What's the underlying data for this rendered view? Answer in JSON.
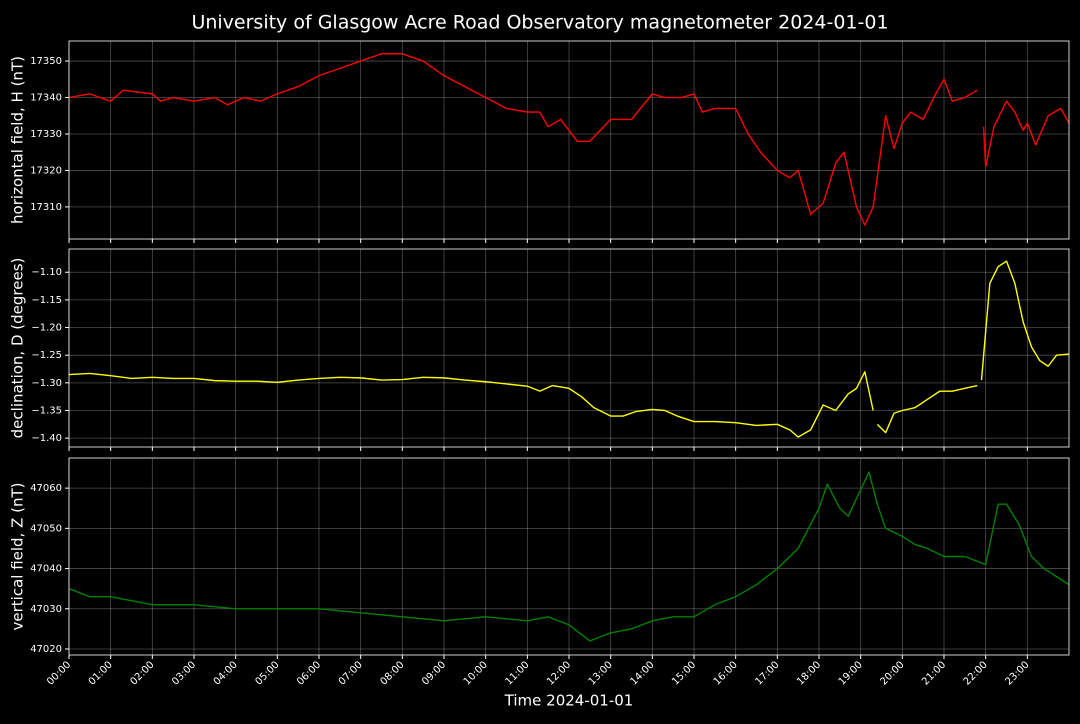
{
  "title": "University of Glasgow Acre Road Observatory magnetometer 2024-01-01",
  "chart_data": [
    {
      "type": "line",
      "ylabel": "horizontal field, H (nT)",
      "grid": true,
      "xlim": [
        0,
        24
      ],
      "ylim": [
        17301.2,
        17355.5
      ],
      "yticks": [
        17310,
        17320,
        17330,
        17340,
        17350
      ],
      "x": [
        0,
        0.5,
        1,
        1.3,
        2,
        2.2,
        2.5,
        3,
        3.5,
        3.8,
        4.2,
        4.6,
        5,
        5.5,
        6,
        6.5,
        7,
        7.5,
        8,
        8.5,
        9,
        9.5,
        10,
        10.5,
        11,
        11.3,
        11.5,
        11.8,
        12.2,
        12.5,
        13,
        13.5,
        14,
        14.3,
        14.7,
        15,
        15.2,
        15.5,
        16,
        16.3,
        16.6,
        17,
        17.3,
        17.5,
        17.8,
        18.1,
        18.4,
        18.6,
        18.9,
        19.1,
        19.3,
        19.6,
        19.8,
        20,
        20.2,
        20.5,
        20.8,
        21,
        21.2,
        21.5,
        21.8,
        21.9,
        21.95,
        22,
        22.2,
        22.5,
        22.7,
        22.9,
        23,
        23.2,
        23.5,
        23.8,
        24
      ],
      "series": [
        {
          "color": "#ff0000",
          "values": [
            17340,
            17341,
            17339,
            17342,
            17341,
            17339,
            17340,
            17339,
            17340,
            17338,
            17340,
            17339,
            17341,
            17343,
            17346,
            17348,
            17350,
            17352,
            17352,
            17350,
            17346,
            17343,
            17340,
            17337,
            17336,
            17336,
            17332,
            17334,
            17328,
            17328,
            17334,
            17334,
            17341,
            17340,
            17340,
            17341,
            17336,
            17337,
            17337,
            17330,
            17325,
            17320,
            17318,
            17320,
            17308,
            17311,
            17322,
            17325,
            17310,
            17305,
            17310,
            17335,
            17326,
            17333,
            17336,
            17334,
            17341,
            17345,
            17339,
            17340,
            17342,
            null,
            17332,
            17321,
            17332,
            17339,
            17336,
            17331,
            17333,
            17327,
            17335,
            17337,
            17333
          ]
        }
      ]
    },
    {
      "type": "line",
      "ylabel": "declination, D (degrees)",
      "grid": true,
      "xlim": [
        0,
        24
      ],
      "ylim": [
        -1.416,
        -1.058
      ],
      "yticks": [
        {
          "value": -1.4,
          "label": "−1.40"
        },
        {
          "value": -1.35,
          "label": "−1.35"
        },
        {
          "value": -1.3,
          "label": "−1.30"
        },
        {
          "value": -1.25,
          "label": "−1.25"
        },
        {
          "value": -1.2,
          "label": "−1.20"
        },
        {
          "value": -1.15,
          "label": "−1.15"
        },
        {
          "value": -1.1,
          "label": "−1.10"
        }
      ],
      "x": [
        0,
        0.5,
        1,
        1.5,
        2,
        2.5,
        3,
        3.5,
        4,
        4.5,
        5,
        5.5,
        6,
        6.5,
        7,
        7.5,
        8,
        8.5,
        9,
        9.5,
        10,
        10.5,
        11,
        11.3,
        11.6,
        12,
        12.3,
        12.6,
        13,
        13.3,
        13.6,
        14,
        14.3,
        14.6,
        15,
        15.5,
        16,
        16.5,
        17,
        17.3,
        17.5,
        17.8,
        18.1,
        18.4,
        18.7,
        18.9,
        19.1,
        19.3,
        19.35,
        19.4,
        19.6,
        19.8,
        20,
        20.3,
        20.6,
        20.9,
        21.2,
        21.5,
        21.8,
        21.85,
        21.9,
        22.1,
        22.3,
        22.5,
        22.7,
        22.9,
        23.1,
        23.3,
        23.5,
        23.7,
        24
      ],
      "series": [
        {
          "color": "#ffff00",
          "values": [
            -1.285,
            -1.283,
            -1.287,
            -1.292,
            -1.29,
            -1.292,
            -1.292,
            -1.296,
            -1.297,
            -1.297,
            -1.299,
            -1.295,
            -1.292,
            -1.29,
            -1.291,
            -1.295,
            -1.294,
            -1.29,
            -1.291,
            -1.295,
            -1.298,
            -1.302,
            -1.306,
            -1.315,
            -1.305,
            -1.31,
            -1.325,
            -1.345,
            -1.36,
            -1.36,
            -1.352,
            -1.348,
            -1.35,
            -1.36,
            -1.37,
            -1.37,
            -1.372,
            -1.377,
            -1.375,
            -1.385,
            -1.398,
            -1.385,
            -1.34,
            -1.35,
            -1.32,
            -1.31,
            -1.28,
            -1.35,
            null,
            -1.375,
            -1.39,
            -1.355,
            -1.35,
            -1.345,
            -1.33,
            -1.315,
            -1.315,
            -1.31,
            -1.305,
            null,
            -1.295,
            -1.12,
            -1.09,
            -1.08,
            -1.12,
            -1.19,
            -1.235,
            -1.26,
            -1.27,
            -1.25,
            -1.248
          ]
        }
      ]
    },
    {
      "type": "line",
      "ylabel": "vertical field, Z (nT)",
      "xlabel": "Time 2024-01-01",
      "grid": true,
      "xlim": [
        0,
        24
      ],
      "ylim": [
        47018.5,
        47067.5
      ],
      "yticks": [
        47020,
        47030,
        47040,
        47050,
        47060
      ],
      "xticks": [
        {
          "value": 0,
          "label": "00:00"
        },
        {
          "value": 1,
          "label": "01:00"
        },
        {
          "value": 2,
          "label": "02:00"
        },
        {
          "value": 3,
          "label": "03:00"
        },
        {
          "value": 4,
          "label": "04:00"
        },
        {
          "value": 5,
          "label": "05:00"
        },
        {
          "value": 6,
          "label": "06:00"
        },
        {
          "value": 7,
          "label": "07:00"
        },
        {
          "value": 8,
          "label": "08:00"
        },
        {
          "value": 9,
          "label": "09:00"
        },
        {
          "value": 10,
          "label": "10:00"
        },
        {
          "value": 11,
          "label": "11:00"
        },
        {
          "value": 12,
          "label": "12:00"
        },
        {
          "value": 13,
          "label": "13:00"
        },
        {
          "value": 14,
          "label": "14:00"
        },
        {
          "value": 15,
          "label": "15:00"
        },
        {
          "value": 16,
          "label": "16:00"
        },
        {
          "value": 17,
          "label": "17:00"
        },
        {
          "value": 18,
          "label": "18:00"
        },
        {
          "value": 19,
          "label": "19:00"
        },
        {
          "value": 20,
          "label": "20:00"
        },
        {
          "value": 21,
          "label": "21:00"
        },
        {
          "value": 22,
          "label": "22:00"
        },
        {
          "value": 23,
          "label": "23:00"
        }
      ],
      "x": [
        0,
        0.5,
        1,
        1.5,
        2,
        3,
        4,
        5,
        6,
        7,
        8,
        9,
        10,
        11,
        11.5,
        12,
        12.5,
        13,
        13.5,
        14,
        14.5,
        15,
        15.5,
        16,
        16.5,
        17,
        17.5,
        18,
        18.2,
        18.5,
        18.7,
        19.2,
        19.4,
        19.6,
        20,
        20.3,
        20.6,
        21,
        21.5,
        22,
        22.3,
        22.5,
        22.8,
        23.1,
        23.4,
        23.7,
        24
      ],
      "series": [
        {
          "color": "#008000",
          "values": [
            47035,
            47033,
            47033,
            47032,
            47031,
            47031,
            47030,
            47030,
            47030,
            47029,
            47028,
            47027,
            47028,
            47027,
            47028,
            47026,
            47022,
            47024,
            47025,
            47027,
            47028,
            47028,
            47031,
            47033,
            47036,
            47040,
            47045,
            47055,
            47061,
            47055,
            47053,
            47064,
            47056,
            47050,
            47048,
            47046,
            47045,
            47043,
            47043,
            47041,
            47056,
            47056,
            47051,
            47043,
            47040,
            47038,
            47036
          ]
        }
      ]
    }
  ]
}
